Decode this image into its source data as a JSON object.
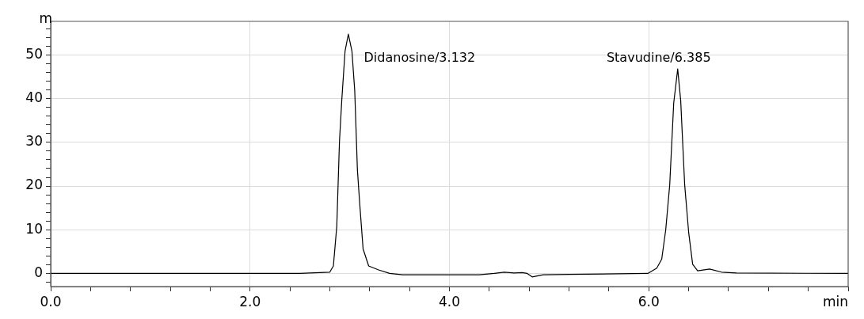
{
  "chart_data": {
    "type": "line",
    "xlabel": "min",
    "ylabel": "m",
    "grid": true,
    "marker": "none",
    "x": [
      0,
      1,
      2,
      2.5,
      2.8,
      2.836,
      2.87,
      2.897,
      2.92,
      2.953,
      2.986,
      3.022,
      3.05,
      3.077,
      3.1,
      3.134,
      3.19,
      3.29,
      3.4,
      3.53,
      4.3,
      4.45,
      4.55,
      4.65,
      4.73,
      4.78,
      4.83,
      4.94,
      5.2,
      5.99,
      6.08,
      6.13,
      6.17,
      6.21,
      6.25,
      6.29,
      6.32,
      6.36,
      6.4,
      6.44,
      6.49,
      6.61,
      6.73,
      6.88,
      8
    ],
    "series": [
      {
        "color": "#000000",
        "values": [
          0,
          0,
          0,
          0,
          0.3,
          1.7,
          10.8,
          30.2,
          39.6,
          50.9,
          54.8,
          50.9,
          41.9,
          23.7,
          16,
          5.6,
          1.7,
          0.8,
          0,
          -0.3,
          -0.3,
          0,
          0.3,
          0.1,
          0.2,
          0,
          -0.8,
          -0.3,
          -0.2,
          0,
          1.2,
          3.3,
          10,
          20.3,
          39,
          46.8,
          39.6,
          20.3,
          9.4,
          2.1,
          0.6,
          1,
          0.3,
          0.1,
          0
        ]
      }
    ],
    "xlim": [
      0,
      8
    ],
    "xticks": [
      {
        "value": 0,
        "label": "0.0"
      },
      {
        "value": 0.4,
        "label": null
      },
      {
        "value": 0.8,
        "label": null
      },
      {
        "value": 1.2,
        "label": null
      },
      {
        "value": 1.6,
        "label": null
      },
      {
        "value": 2,
        "label": "2.0"
      },
      {
        "value": 2.4,
        "label": null
      },
      {
        "value": 2.8,
        "label": null
      },
      {
        "value": 3.2,
        "label": null
      },
      {
        "value": 3.6,
        "label": null
      },
      {
        "value": 4,
        "label": "4.0"
      },
      {
        "value": 4.4,
        "label": null
      },
      {
        "value": 4.8,
        "label": null
      },
      {
        "value": 5.2,
        "label": null
      },
      {
        "value": 5.6,
        "label": null
      },
      {
        "value": 6,
        "label": "6.0"
      },
      {
        "value": 6.4,
        "label": null
      },
      {
        "value": 6.8,
        "label": null
      },
      {
        "value": 7.2,
        "label": null
      },
      {
        "value": 7.6,
        "label": null
      },
      {
        "value": 8,
        "label": null
      }
    ],
    "ylim": [
      -3,
      57.7
    ],
    "yticks": [
      {
        "value": -2,
        "label": null
      },
      0,
      {
        "value": 2,
        "label": null
      },
      {
        "value": 4,
        "label": null
      },
      {
        "value": 6,
        "label": null
      },
      {
        "value": 8,
        "label": null
      },
      10,
      {
        "value": 12,
        "label": null
      },
      {
        "value": 14,
        "label": null
      },
      {
        "value": 16,
        "label": null
      },
      {
        "value": 18,
        "label": null
      },
      20,
      {
        "value": 22,
        "label": null
      },
      {
        "value": 24,
        "label": null
      },
      {
        "value": 26,
        "label": null
      },
      {
        "value": 28,
        "label": null
      },
      30,
      {
        "value": 32,
        "label": null
      },
      {
        "value": 34,
        "label": null
      },
      {
        "value": 36,
        "label": null
      },
      {
        "value": 38,
        "label": null
      },
      40,
      {
        "value": 42,
        "label": null
      },
      {
        "value": 44,
        "label": null
      },
      {
        "value": 46,
        "label": null
      },
      {
        "value": 48,
        "label": null
      },
      50,
      {
        "value": 52,
        "label": null
      },
      {
        "value": 54,
        "label": null
      },
      {
        "value": 56,
        "label": null
      }
    ],
    "annotations": [
      "Didanosine/3.132",
      "Stavudine/6.385"
    ]
  }
}
